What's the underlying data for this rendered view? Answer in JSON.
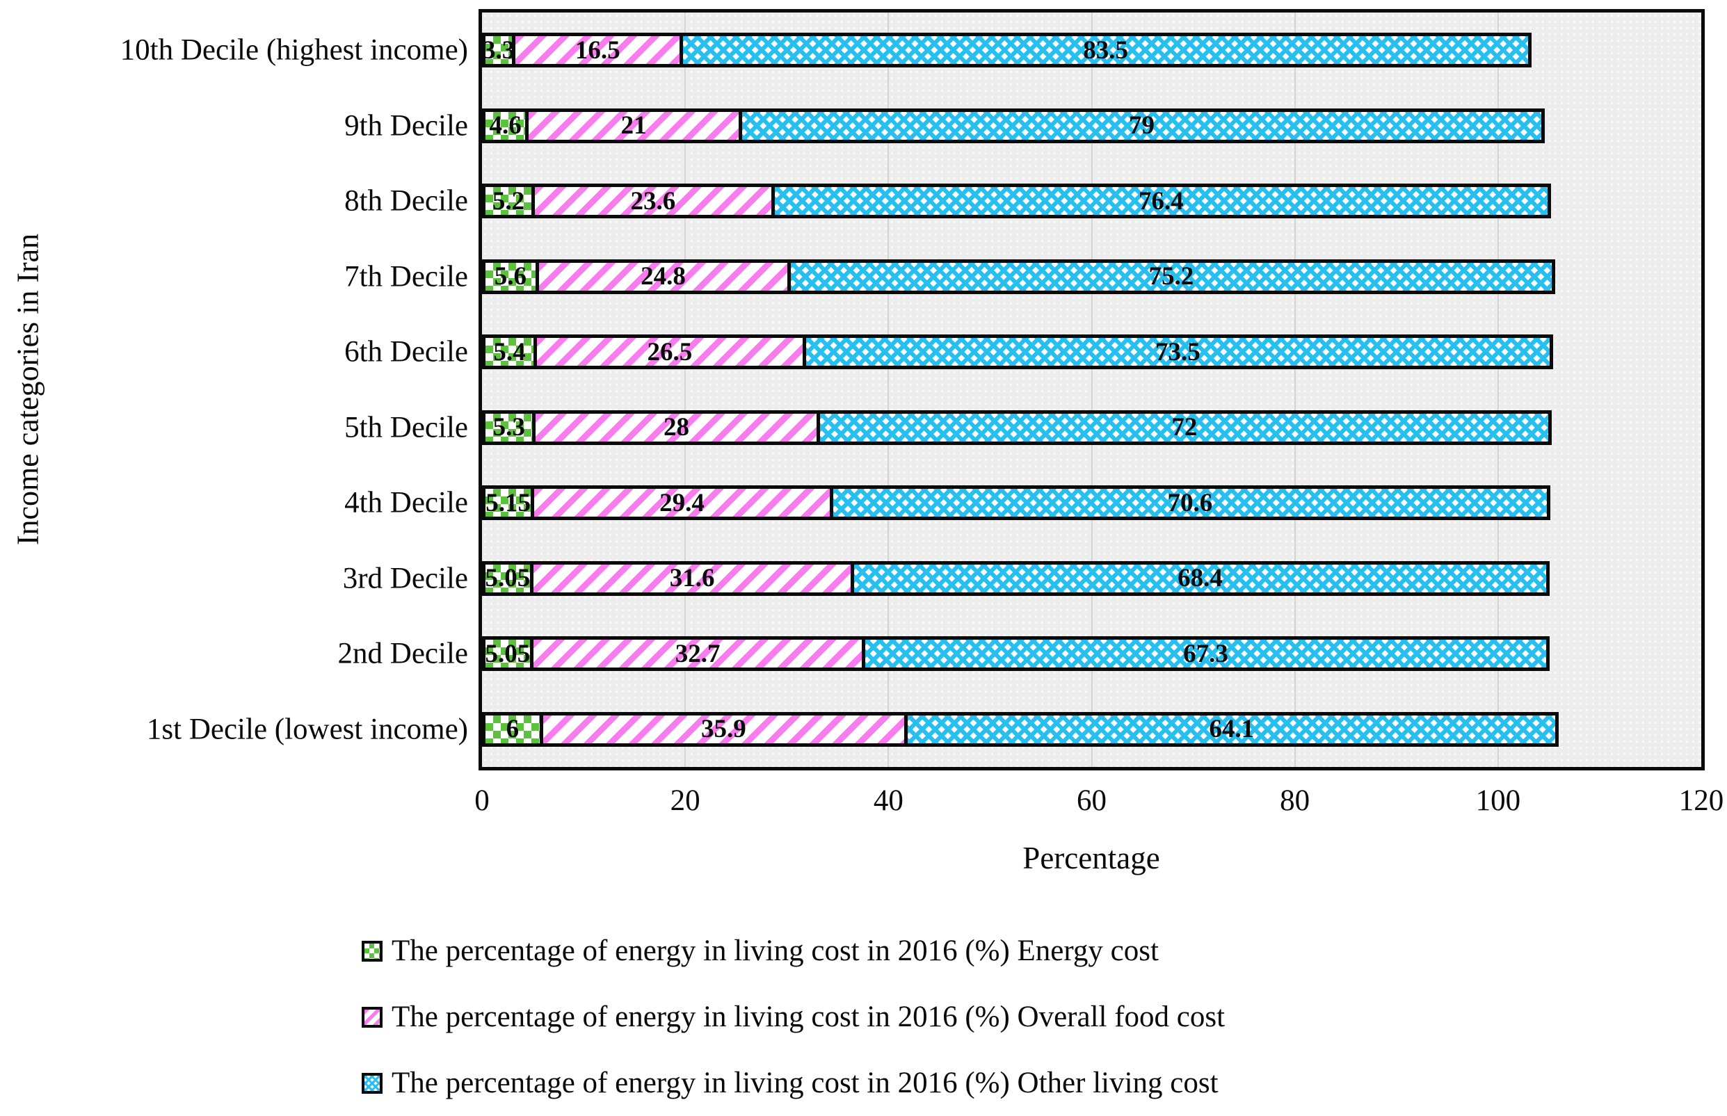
{
  "chart_data": {
    "type": "bar",
    "orientation": "horizontal-stacked",
    "title": "",
    "xlabel": "Percentage",
    "ylabel": "Income categories in Iran",
    "xlim": [
      0,
      120
    ],
    "xticks": [
      0,
      20,
      40,
      60,
      80,
      100,
      120
    ],
    "grid": "vertical gridlines every 20 units on light dotted gray plot background",
    "legend_position": "bottom-left",
    "plot_background": "#EDEDED",
    "categories": [
      "10th Decile (highest income)",
      "9th Decile",
      "8th Decile",
      "7th Decile",
      "6th Decile",
      "5th Decile",
      "4th Decile",
      "3rd Decile",
      "2nd Decile",
      "1st Decile (lowest income)"
    ],
    "series": [
      {
        "key": "energy",
        "name": "The percentage of energy in living cost in 2016 (%) Energy cost",
        "color": "#5CC13C",
        "pattern": "green-white checkerboard",
        "values": [
          3.3,
          4.6,
          5.2,
          5.6,
          5.4,
          5.3,
          5.15,
          5.05,
          5.05,
          6
        ],
        "labels": [
          "3.3",
          "4.6",
          "5.2",
          "5.6",
          "5.4",
          "5.3",
          "5.15",
          "5.05",
          "5.05",
          "6"
        ]
      },
      {
        "key": "food",
        "name": "The percentage of energy in living cost in 2016 (%) Overall food cost",
        "color": "#F97CEF",
        "pattern": "pink diagonal stripes",
        "values": [
          16.5,
          21,
          23.6,
          24.8,
          26.5,
          28,
          29.4,
          31.6,
          32.7,
          35.9
        ],
        "labels": [
          "16.5",
          "21",
          "23.6",
          "24.8",
          "26.5",
          "28",
          "29.4",
          "31.6",
          "32.7",
          "35.9"
        ]
      },
      {
        "key": "other",
        "name": "The percentage of energy in living cost in 2016 (%) Other living cost",
        "color": "#27BFF0",
        "pattern": "cyan basket-weave crosshatch",
        "values": [
          83.5,
          79,
          76.4,
          75.2,
          73.5,
          72,
          70.6,
          68.4,
          67.3,
          64.1
        ],
        "labels": [
          "83.5",
          "79",
          "76.4",
          "75.2",
          "73.5",
          "72",
          "70.6",
          "68.4",
          "67.3",
          "64.1"
        ]
      }
    ]
  }
}
